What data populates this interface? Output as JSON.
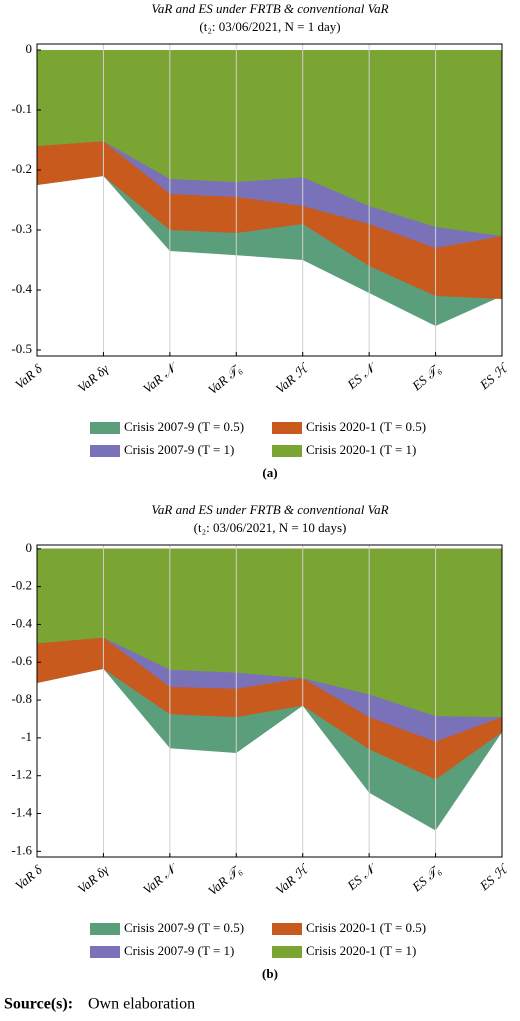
{
  "chart_data": [
    {
      "type": "area",
      "title": "VaR and ES under FRTB & conventional VaR",
      "subtitle": "(t₂: 03/06/2021, N = 1 day)",
      "panel": "(a)",
      "categories": [
        "VaR δ",
        "VaR δγ",
        "VaR 𝒩",
        "VaR 𝒯₆",
        "VaR ℋ",
        "ES 𝒩",
        "ES 𝒯₆",
        "ES ℋ"
      ],
      "series": [
        {
          "name": "Crisis 2007-9 (T = 0.5)",
          "color": "#5b9e7b",
          "values": [
            -0.225,
            -0.21,
            -0.335,
            -0.342,
            -0.35,
            -0.405,
            -0.46,
            -0.41
          ]
        },
        {
          "name": "Crisis 2020-1 (T = 0.5)",
          "color": "#c85a1e",
          "values": [
            -0.225,
            -0.21,
            -0.3,
            -0.305,
            -0.29,
            -0.36,
            -0.41,
            -0.415
          ]
        },
        {
          "name": "Crisis 2007-9 (T = 1)",
          "color": "#7a72b8",
          "values": [
            -0.16,
            -0.152,
            -0.24,
            -0.245,
            -0.26,
            -0.29,
            -0.33,
            -0.31
          ]
        },
        {
          "name": "Crisis 2020-1 (T = 1)",
          "color": "#7ba533",
          "values": [
            -0.16,
            -0.152,
            -0.215,
            -0.22,
            -0.212,
            -0.26,
            -0.295,
            -0.31
          ]
        }
      ],
      "ylim": [
        -0.51,
        0.01
      ],
      "yticks": [
        0,
        -0.1,
        -0.2,
        -0.3,
        -0.4,
        -0.5
      ],
      "grid": true
    },
    {
      "type": "area",
      "title": "VaR and ES under FRTB & conventional VaR",
      "subtitle": "(t₂: 03/06/2021, N = 10 days)",
      "panel": "(b)",
      "categories": [
        "VaR δ",
        "VaR δγ",
        "VaR 𝒩",
        "VaR 𝒯₆",
        "VaR ℋ",
        "ES 𝒩",
        "ES 𝒯₆",
        "ES ℋ"
      ],
      "series": [
        {
          "name": "Crisis 2007-9 (T = 0.5)",
          "color": "#5b9e7b",
          "values": [
            -0.71,
            -0.635,
            -1.055,
            -1.08,
            -0.83,
            -1.29,
            -1.49,
            -0.97
          ]
        },
        {
          "name": "Crisis 2020-1 (T = 0.5)",
          "color": "#c85a1e",
          "values": [
            -0.71,
            -0.635,
            -0.875,
            -0.89,
            -0.83,
            -1.06,
            -1.22,
            -0.97
          ]
        },
        {
          "name": "Crisis 2007-9 (T = 1)",
          "color": "#7a72b8",
          "values": [
            -0.5,
            -0.47,
            -0.73,
            -0.74,
            -0.685,
            -0.89,
            -1.02,
            -0.89
          ]
        },
        {
          "name": "Crisis 2020-1 (T = 1)",
          "color": "#7ba533",
          "values": [
            -0.5,
            -0.47,
            -0.64,
            -0.655,
            -0.685,
            -0.77,
            -0.885,
            -0.89
          ]
        }
      ],
      "ylim": [
        -1.63,
        0.02
      ],
      "yticks": [
        0,
        -0.2,
        -0.4,
        -0.6,
        -0.8,
        -1,
        -1.2,
        -1.4,
        -1.6
      ],
      "grid": true
    }
  ],
  "source": {
    "label": "Source(s):",
    "text": "Own elaboration"
  }
}
